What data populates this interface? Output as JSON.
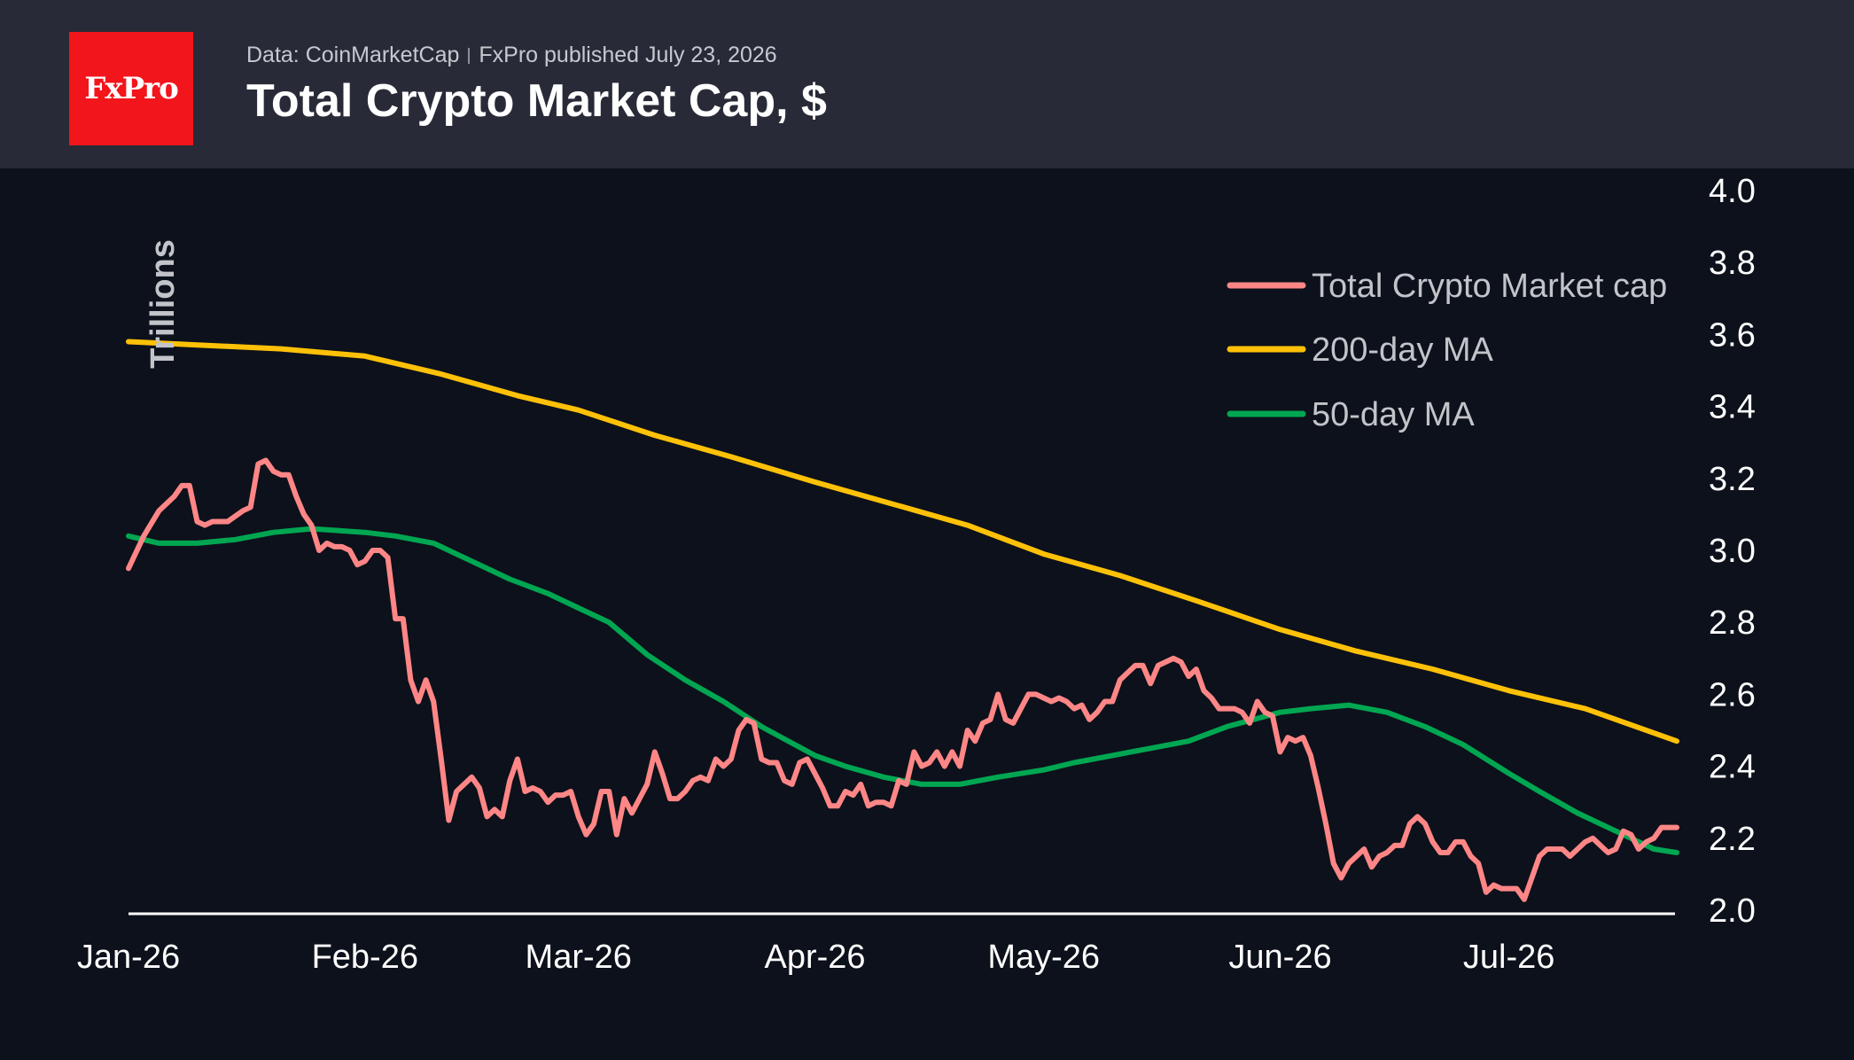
{
  "header": {
    "logo_text": "FxPro",
    "source": "Data: CoinMarketCap",
    "published": "FxPro published July 23, 2026",
    "title": "Total Crypto Market Cap, $"
  },
  "colors": {
    "background": "#0d111b",
    "header": "#282b37",
    "logo": "#f2151b",
    "total": "#ff8686",
    "ma200": "#ffc107",
    "ma50": "#00a651"
  },
  "chart_data": {
    "type": "line",
    "ylabel": "Trillions",
    "ylim": [
      2.0,
      4.0
    ],
    "yticks": [
      "4.0",
      "3.8",
      "3.6",
      "3.4",
      "3.2",
      "3.0",
      "2.8",
      "2.6",
      "2.4",
      "2.2",
      "2.0"
    ],
    "xlim": [
      "2026-01-01",
      "2026-07-23"
    ],
    "xticks": [
      {
        "date": "2026-01-01",
        "label": "Jan-26"
      },
      {
        "date": "2026-02-01",
        "label": "Feb-26"
      },
      {
        "date": "2026-03-01",
        "label": "Mar-26"
      },
      {
        "date": "2026-04-01",
        "label": "Apr-26"
      },
      {
        "date": "2026-05-01",
        "label": "May-26"
      },
      {
        "date": "2026-06-01",
        "label": "Jun-26"
      },
      {
        "date": "2026-07-01",
        "label": "Jul-26"
      }
    ],
    "legend_position": "top-right",
    "grid": false,
    "series": [
      {
        "name": "Total Crypto Market cap",
        "color": "#ff8686",
        "points": [
          [
            "2026-01-01",
            2.95
          ],
          [
            "2026-01-03",
            3.04
          ],
          [
            "2026-01-05",
            3.11
          ],
          [
            "2026-01-07",
            3.15
          ],
          [
            "2026-01-08",
            3.18
          ],
          [
            "2026-01-09",
            3.18
          ],
          [
            "2026-01-10",
            3.08
          ],
          [
            "2026-01-11",
            3.07
          ],
          [
            "2026-01-12",
            3.08
          ],
          [
            "2026-01-13",
            3.08
          ],
          [
            "2026-01-14",
            3.08
          ],
          [
            "2026-01-16",
            3.11
          ],
          [
            "2026-01-17",
            3.12
          ],
          [
            "2026-01-18",
            3.24
          ],
          [
            "2026-01-19",
            3.25
          ],
          [
            "2026-01-20",
            3.22
          ],
          [
            "2026-01-21",
            3.21
          ],
          [
            "2026-01-22",
            3.21
          ],
          [
            "2026-01-23",
            3.15
          ],
          [
            "2026-01-24",
            3.1
          ],
          [
            "2026-01-25",
            3.07
          ],
          [
            "2026-01-26",
            3.0
          ],
          [
            "2026-01-27",
            3.02
          ],
          [
            "2026-01-28",
            3.01
          ],
          [
            "2026-01-29",
            3.01
          ],
          [
            "2026-01-30",
            3.0
          ],
          [
            "2026-01-31",
            2.96
          ],
          [
            "2026-02-01",
            2.97
          ],
          [
            "2026-02-02",
            3.0
          ],
          [
            "2026-02-03",
            3.0
          ],
          [
            "2026-02-04",
            2.98
          ],
          [
            "2026-02-05",
            2.81
          ],
          [
            "2026-02-06",
            2.81
          ],
          [
            "2026-02-07",
            2.64
          ],
          [
            "2026-02-08",
            2.58
          ],
          [
            "2026-02-09",
            2.64
          ],
          [
            "2026-02-10",
            2.58
          ],
          [
            "2026-02-11",
            2.42
          ],
          [
            "2026-02-12",
            2.25
          ],
          [
            "2026-02-13",
            2.33
          ],
          [
            "2026-02-14",
            2.35
          ],
          [
            "2026-02-15",
            2.37
          ],
          [
            "2026-02-16",
            2.34
          ],
          [
            "2026-02-17",
            2.26
          ],
          [
            "2026-02-18",
            2.28
          ],
          [
            "2026-02-19",
            2.26
          ],
          [
            "2026-02-20",
            2.36
          ],
          [
            "2026-02-21",
            2.42
          ],
          [
            "2026-02-22",
            2.33
          ],
          [
            "2026-02-23",
            2.34
          ],
          [
            "2026-02-24",
            2.33
          ],
          [
            "2026-02-25",
            2.3
          ],
          [
            "2026-02-26",
            2.32
          ],
          [
            "2026-02-27",
            2.32
          ],
          [
            "2026-02-28",
            2.33
          ],
          [
            "2026-03-01",
            2.26
          ],
          [
            "2026-03-02",
            2.21
          ],
          [
            "2026-03-03",
            2.24
          ],
          [
            "2026-03-04",
            2.33
          ],
          [
            "2026-03-05",
            2.33
          ],
          [
            "2026-03-06",
            2.21
          ],
          [
            "2026-03-07",
            2.31
          ],
          [
            "2026-03-08",
            2.27
          ],
          [
            "2026-03-09",
            2.31
          ],
          [
            "2026-03-10",
            2.35
          ],
          [
            "2026-03-11",
            2.44
          ],
          [
            "2026-03-12",
            2.38
          ],
          [
            "2026-03-13",
            2.31
          ],
          [
            "2026-03-14",
            2.31
          ],
          [
            "2026-03-15",
            2.33
          ],
          [
            "2026-03-16",
            2.36
          ],
          [
            "2026-03-17",
            2.37
          ],
          [
            "2026-03-18",
            2.36
          ],
          [
            "2026-03-19",
            2.42
          ],
          [
            "2026-03-20",
            2.4
          ],
          [
            "2026-03-21",
            2.42
          ],
          [
            "2026-03-22",
            2.5
          ],
          [
            "2026-03-23",
            2.53
          ],
          [
            "2026-03-24",
            2.52
          ],
          [
            "2026-03-25",
            2.42
          ],
          [
            "2026-03-26",
            2.41
          ],
          [
            "2026-03-27",
            2.41
          ],
          [
            "2026-03-28",
            2.36
          ],
          [
            "2026-03-29",
            2.35
          ],
          [
            "2026-03-30",
            2.41
          ],
          [
            "2026-03-31",
            2.42
          ],
          [
            "2026-04-01",
            2.38
          ],
          [
            "2026-04-02",
            2.34
          ],
          [
            "2026-04-03",
            2.29
          ],
          [
            "2026-04-04",
            2.29
          ],
          [
            "2026-04-05",
            2.33
          ],
          [
            "2026-04-06",
            2.32
          ],
          [
            "2026-04-07",
            2.35
          ],
          [
            "2026-04-08",
            2.29
          ],
          [
            "2026-04-09",
            2.3
          ],
          [
            "2026-04-10",
            2.3
          ],
          [
            "2026-04-11",
            2.29
          ],
          [
            "2026-04-12",
            2.36
          ],
          [
            "2026-04-13",
            2.35
          ],
          [
            "2026-04-14",
            2.44
          ],
          [
            "2026-04-15",
            2.4
          ],
          [
            "2026-04-16",
            2.41
          ],
          [
            "2026-04-17",
            2.44
          ],
          [
            "2026-04-18",
            2.4
          ],
          [
            "2026-04-19",
            2.44
          ],
          [
            "2026-04-20",
            2.4
          ],
          [
            "2026-04-21",
            2.5
          ],
          [
            "2026-04-22",
            2.47
          ],
          [
            "2026-04-23",
            2.52
          ],
          [
            "2026-04-24",
            2.53
          ],
          [
            "2026-04-25",
            2.6
          ],
          [
            "2026-04-26",
            2.53
          ],
          [
            "2026-04-27",
            2.52
          ],
          [
            "2026-04-28",
            2.56
          ],
          [
            "2026-04-29",
            2.6
          ],
          [
            "2026-04-30",
            2.6
          ],
          [
            "2026-05-01",
            2.59
          ],
          [
            "2026-05-02",
            2.58
          ],
          [
            "2026-05-03",
            2.59
          ],
          [
            "2026-05-04",
            2.58
          ],
          [
            "2026-05-05",
            2.56
          ],
          [
            "2026-05-06",
            2.57
          ],
          [
            "2026-05-07",
            2.53
          ],
          [
            "2026-05-08",
            2.55
          ],
          [
            "2026-05-09",
            2.58
          ],
          [
            "2026-05-10",
            2.58
          ],
          [
            "2026-05-11",
            2.64
          ],
          [
            "2026-05-12",
            2.66
          ],
          [
            "2026-05-13",
            2.68
          ],
          [
            "2026-05-14",
            2.68
          ],
          [
            "2026-05-15",
            2.63
          ],
          [
            "2026-05-16",
            2.68
          ],
          [
            "2026-05-17",
            2.69
          ],
          [
            "2026-05-18",
            2.7
          ],
          [
            "2026-05-19",
            2.69
          ],
          [
            "2026-05-20",
            2.65
          ],
          [
            "2026-05-21",
            2.67
          ],
          [
            "2026-05-22",
            2.61
          ],
          [
            "2026-05-23",
            2.59
          ],
          [
            "2026-05-24",
            2.56
          ],
          [
            "2026-05-25",
            2.56
          ],
          [
            "2026-05-26",
            2.56
          ],
          [
            "2026-05-27",
            2.55
          ],
          [
            "2026-05-28",
            2.52
          ],
          [
            "2026-05-29",
            2.58
          ],
          [
            "2026-05-30",
            2.55
          ],
          [
            "2026-05-31",
            2.54
          ],
          [
            "2026-06-01",
            2.44
          ],
          [
            "2026-06-02",
            2.48
          ],
          [
            "2026-06-03",
            2.47
          ],
          [
            "2026-06-04",
            2.48
          ],
          [
            "2026-06-05",
            2.43
          ],
          [
            "2026-06-06",
            2.34
          ],
          [
            "2026-06-07",
            2.24
          ],
          [
            "2026-06-08",
            2.13
          ],
          [
            "2026-06-09",
            2.09
          ],
          [
            "2026-06-10",
            2.13
          ],
          [
            "2026-06-11",
            2.15
          ],
          [
            "2026-06-12",
            2.17
          ],
          [
            "2026-06-13",
            2.12
          ],
          [
            "2026-06-14",
            2.15
          ],
          [
            "2026-06-15",
            2.16
          ],
          [
            "2026-06-16",
            2.18
          ],
          [
            "2026-06-17",
            2.18
          ],
          [
            "2026-06-18",
            2.24
          ],
          [
            "2026-06-19",
            2.26
          ],
          [
            "2026-06-20",
            2.24
          ],
          [
            "2026-06-21",
            2.19
          ],
          [
            "2026-06-22",
            2.16
          ],
          [
            "2026-06-23",
            2.16
          ],
          [
            "2026-06-24",
            2.19
          ],
          [
            "2026-06-25",
            2.19
          ],
          [
            "2026-06-26",
            2.15
          ],
          [
            "2026-06-27",
            2.13
          ],
          [
            "2026-06-28",
            2.05
          ],
          [
            "2026-06-29",
            2.07
          ],
          [
            "2026-06-30",
            2.06
          ],
          [
            "2026-07-01",
            2.06
          ],
          [
            "2026-07-02",
            2.06
          ],
          [
            "2026-07-03",
            2.03
          ],
          [
            "2026-07-04",
            2.09
          ],
          [
            "2026-07-05",
            2.15
          ],
          [
            "2026-07-06",
            2.17
          ],
          [
            "2026-07-07",
            2.17
          ],
          [
            "2026-07-08",
            2.17
          ],
          [
            "2026-07-09",
            2.15
          ],
          [
            "2026-07-10",
            2.17
          ],
          [
            "2026-07-11",
            2.19
          ],
          [
            "2026-07-12",
            2.2
          ],
          [
            "2026-07-13",
            2.18
          ],
          [
            "2026-07-14",
            2.16
          ],
          [
            "2026-07-15",
            2.17
          ],
          [
            "2026-07-16",
            2.22
          ],
          [
            "2026-07-17",
            2.21
          ],
          [
            "2026-07-18",
            2.17
          ],
          [
            "2026-07-19",
            2.19
          ],
          [
            "2026-07-20",
            2.2
          ],
          [
            "2026-07-21",
            2.23
          ],
          [
            "2026-07-23",
            2.23
          ]
        ]
      },
      {
        "name": "200-day MA",
        "color": "#ffc107",
        "points": [
          [
            "2026-01-01",
            3.58
          ],
          [
            "2026-01-11",
            3.57
          ],
          [
            "2026-01-21",
            3.56
          ],
          [
            "2026-02-01",
            3.54
          ],
          [
            "2026-02-11",
            3.49
          ],
          [
            "2026-02-21",
            3.43
          ],
          [
            "2026-03-01",
            3.39
          ],
          [
            "2026-03-11",
            3.32
          ],
          [
            "2026-03-21",
            3.26
          ],
          [
            "2026-04-01",
            3.19
          ],
          [
            "2026-04-11",
            3.13
          ],
          [
            "2026-04-21",
            3.07
          ],
          [
            "2026-05-01",
            2.99
          ],
          [
            "2026-05-11",
            2.93
          ],
          [
            "2026-05-21",
            2.86
          ],
          [
            "2026-06-01",
            2.78
          ],
          [
            "2026-06-11",
            2.72
          ],
          [
            "2026-06-21",
            2.67
          ],
          [
            "2026-07-01",
            2.61
          ],
          [
            "2026-07-11",
            2.56
          ],
          [
            "2026-07-23",
            2.47
          ]
        ]
      },
      {
        "name": "50-day MA",
        "color": "#00a651",
        "points": [
          [
            "2026-01-01",
            3.04
          ],
          [
            "2026-01-05",
            3.02
          ],
          [
            "2026-01-10",
            3.02
          ],
          [
            "2026-01-15",
            3.03
          ],
          [
            "2026-01-20",
            3.05
          ],
          [
            "2026-01-25",
            3.06
          ],
          [
            "2026-02-01",
            3.05
          ],
          [
            "2026-02-05",
            3.04
          ],
          [
            "2026-02-10",
            3.02
          ],
          [
            "2026-02-15",
            2.97
          ],
          [
            "2026-02-20",
            2.92
          ],
          [
            "2026-02-25",
            2.88
          ],
          [
            "2026-03-01",
            2.84
          ],
          [
            "2026-03-05",
            2.8
          ],
          [
            "2026-03-10",
            2.71
          ],
          [
            "2026-03-15",
            2.64
          ],
          [
            "2026-03-20",
            2.58
          ],
          [
            "2026-03-25",
            2.51
          ],
          [
            "2026-04-01",
            2.43
          ],
          [
            "2026-04-05",
            2.4
          ],
          [
            "2026-04-10",
            2.37
          ],
          [
            "2026-04-15",
            2.35
          ],
          [
            "2026-04-20",
            2.35
          ],
          [
            "2026-04-25",
            2.37
          ],
          [
            "2026-05-01",
            2.39
          ],
          [
            "2026-05-05",
            2.41
          ],
          [
            "2026-05-10",
            2.43
          ],
          [
            "2026-05-15",
            2.45
          ],
          [
            "2026-05-20",
            2.47
          ],
          [
            "2026-05-25",
            2.51
          ],
          [
            "2026-06-01",
            2.55
          ],
          [
            "2026-06-05",
            2.56
          ],
          [
            "2026-06-10",
            2.57
          ],
          [
            "2026-06-15",
            2.55
          ],
          [
            "2026-06-20",
            2.51
          ],
          [
            "2026-06-25",
            2.46
          ],
          [
            "2026-07-01",
            2.38
          ],
          [
            "2026-07-05",
            2.33
          ],
          [
            "2026-07-10",
            2.27
          ],
          [
            "2026-07-15",
            2.22
          ],
          [
            "2026-07-20",
            2.17
          ],
          [
            "2026-07-23",
            2.16
          ]
        ]
      }
    ]
  }
}
